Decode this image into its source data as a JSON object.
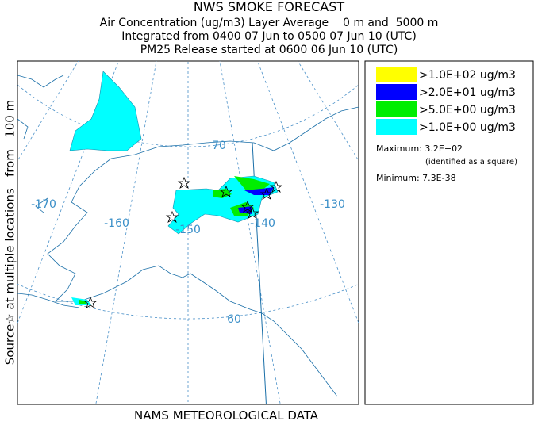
{
  "header": {
    "title": "NWS SMOKE FORECAST",
    "lines": [
      "Air Concentration (ug/m3) Layer Average    0 m and  5000 m",
      "Integrated from 0400 07 Jun to 0500 07 Jun 10 (UTC)",
      "PM25 Release started at 0600 06 Jun 10 (UTC)"
    ]
  },
  "side_label": "Source☆ at multiple locations   from   100 m",
  "map": {
    "lon_labels": [
      "-170",
      "-160",
      "-150",
      "-140",
      "-130"
    ],
    "lat_labels": [
      "70",
      "60"
    ]
  },
  "legend": {
    "items": [
      {
        "label": ">1.0E+02 ug/m3",
        "color": "#ffff00"
      },
      {
        "label": ">2.0E+01 ug/m3",
        "color": "#0000ff"
      },
      {
        "label": ">5.0E+00 ug/m3",
        "color": "#00ee00"
      },
      {
        "label": ">1.0E+00 ug/m3",
        "color": "#00ffff"
      }
    ],
    "maximum": "Maximum: 3.2E+02",
    "max_note": "(identified as a square)",
    "minimum": "Minimum: 7.3E-38"
  },
  "footer": "NAMS METEOROLOGICAL DATA"
}
